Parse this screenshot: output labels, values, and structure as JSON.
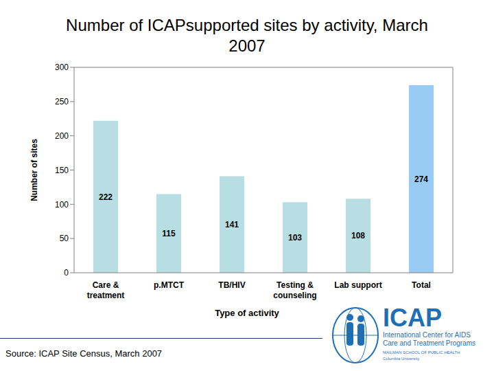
{
  "chart_data": {
    "type": "bar",
    "title": "Number of ICAPsupported sites by activity, March 2007",
    "x_label": "Type of activity",
    "y_label": "Number of sites",
    "categories": [
      "Care & treatment",
      "p.MTCT",
      "TB/HIV",
      "Testing & counseling",
      "Lab support",
      "Total"
    ],
    "values": [
      222,
      115,
      141,
      103,
      108,
      274
    ],
    "colors": [
      "#b7dfe3",
      "#b7dfe3",
      "#b7dfe3",
      "#b7dfe3",
      "#b7dfe3",
      "#99ccf2"
    ],
    "ylim": [
      0,
      300
    ],
    "yticks": [
      0,
      50,
      100,
      150,
      200,
      250,
      300
    ],
    "grid": false,
    "data_labels": true,
    "source": "Source: ICAP Site Census, March 2007",
    "annotations": [
      "ICAP",
      "International Center for AIDS",
      "Care and Treatment Programs",
      "MAILMAN SCHOOL OF PUBLIC HEALTH",
      "Columbia University"
    ]
  }
}
